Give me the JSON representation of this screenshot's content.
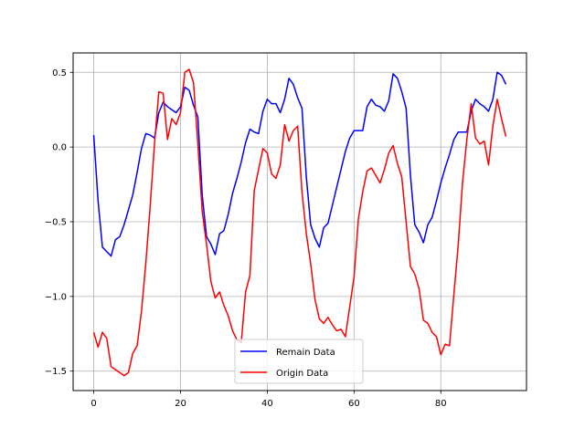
{
  "chart_data": {
    "type": "line",
    "title": "",
    "xlabel": "",
    "ylabel": "",
    "xlim": [
      -4.75,
      99.75
    ],
    "ylim": [
      -1.63,
      0.63
    ],
    "grid": true,
    "legend_position": "lower center",
    "x_ticks": [
      0,
      20,
      40,
      60,
      80
    ],
    "x_tick_labels": [
      "0",
      "20",
      "40",
      "60",
      "80"
    ],
    "y_ticks": [
      -1.5,
      -1.0,
      -0.5,
      0.0,
      0.5
    ],
    "y_tick_labels": [
      "−1.5",
      "−1.0",
      "−0.5",
      "0.0",
      "0.5"
    ],
    "series": [
      {
        "name": "Remain Data",
        "color": "#0000ff",
        "x": [
          0,
          1,
          2,
          3,
          4,
          5,
          6,
          7,
          8,
          9,
          10,
          11,
          12,
          13,
          14,
          15,
          16,
          17,
          18,
          19,
          20,
          21,
          22,
          23,
          24,
          25,
          26,
          27,
          28,
          29,
          30,
          31,
          32,
          33,
          34,
          35,
          36,
          37,
          38,
          39,
          40,
          41,
          42,
          43,
          44,
          45,
          46,
          47,
          48,
          49,
          50,
          51,
          52,
          53,
          54,
          55,
          56,
          57,
          58,
          59,
          60,
          61,
          62,
          63,
          64,
          65,
          66,
          67,
          68,
          69,
          70,
          71,
          72,
          73,
          74,
          75,
          76,
          77,
          78,
          79,
          80,
          81,
          82,
          83,
          84,
          85,
          86,
          87,
          88,
          89,
          90,
          91,
          92,
          93,
          94,
          95
        ],
        "y": [
          0.08,
          -0.36,
          -0.67,
          -0.7,
          -0.73,
          -0.62,
          -0.6,
          -0.52,
          -0.42,
          -0.32,
          -0.17,
          -0.01,
          0.09,
          0.08,
          0.06,
          0.23,
          0.3,
          0.27,
          0.25,
          0.23,
          0.27,
          0.4,
          0.38,
          0.28,
          0.2,
          -0.32,
          -0.6,
          -0.65,
          -0.72,
          -0.58,
          -0.56,
          -0.45,
          -0.31,
          -0.21,
          -0.1,
          0.03,
          0.12,
          0.1,
          0.09,
          0.24,
          0.32,
          0.29,
          0.29,
          0.23,
          0.32,
          0.46,
          0.42,
          0.33,
          0.26,
          -0.2,
          -0.52,
          -0.61,
          -0.67,
          -0.54,
          -0.51,
          -0.39,
          -0.27,
          -0.15,
          -0.03,
          0.06,
          0.11,
          0.11,
          0.11,
          0.27,
          0.32,
          0.28,
          0.27,
          0.24,
          0.31,
          0.49,
          0.46,
          0.37,
          0.26,
          -0.19,
          -0.52,
          -0.57,
          -0.64,
          -0.52,
          -0.47,
          -0.36,
          -0.24,
          -0.14,
          -0.05,
          0.05,
          0.1,
          0.1,
          0.1,
          0.24,
          0.32,
          0.29,
          0.27,
          0.24,
          0.32,
          0.5,
          0.48,
          0.42
        ]
      },
      {
        "name": "Origin Data",
        "color": "#ff0000",
        "x": [
          0,
          1,
          2,
          3,
          4,
          5,
          6,
          7,
          8,
          9,
          10,
          11,
          12,
          13,
          14,
          15,
          16,
          17,
          18,
          19,
          20,
          21,
          22,
          23,
          24,
          25,
          26,
          27,
          28,
          29,
          30,
          31,
          32,
          33,
          34,
          35,
          36,
          37,
          38,
          39,
          40,
          41,
          42,
          43,
          44,
          45,
          46,
          47,
          48,
          49,
          50,
          51,
          52,
          53,
          54,
          55,
          56,
          57,
          58,
          59,
          60,
          61,
          62,
          63,
          64,
          65,
          66,
          67,
          68,
          69,
          70,
          71,
          72,
          73,
          74,
          75,
          76,
          77,
          78,
          79,
          80,
          81,
          82,
          83,
          84,
          85,
          86,
          87,
          88,
          89,
          90,
          91,
          92,
          93,
          94,
          95
        ],
        "y": [
          -1.24,
          -1.34,
          -1.24,
          -1.28,
          -1.47,
          -1.49,
          -1.51,
          -1.53,
          -1.51,
          -1.38,
          -1.33,
          -1.1,
          -0.78,
          -0.4,
          0.02,
          0.37,
          0.36,
          0.05,
          0.19,
          0.15,
          0.23,
          0.5,
          0.52,
          0.43,
          0.02,
          -0.43,
          -0.65,
          -0.9,
          -1.01,
          -0.97,
          -1.06,
          -1.13,
          -1.23,
          -1.29,
          -1.31,
          -0.97,
          -0.86,
          -0.29,
          -0.15,
          -0.01,
          -0.04,
          -0.18,
          -0.21,
          -0.12,
          0.15,
          0.04,
          0.11,
          0.14,
          -0.3,
          -0.58,
          -0.78,
          -1.02,
          -1.15,
          -1.18,
          -1.14,
          -1.19,
          -1.23,
          -1.22,
          -1.27,
          -1.07,
          -0.87,
          -0.48,
          -0.3,
          -0.16,
          -0.14,
          -0.19,
          -0.24,
          -0.15,
          -0.04,
          0.01,
          -0.11,
          -0.2,
          -0.5,
          -0.8,
          -0.85,
          -0.95,
          -1.16,
          -1.18,
          -1.24,
          -1.27,
          -1.39,
          -1.32,
          -1.33,
          -0.99,
          -0.66,
          -0.24,
          0.05,
          0.29,
          0.06,
          0.02,
          0.04,
          -0.12,
          0.14,
          0.32,
          0.19,
          0.07
        ]
      }
    ]
  }
}
